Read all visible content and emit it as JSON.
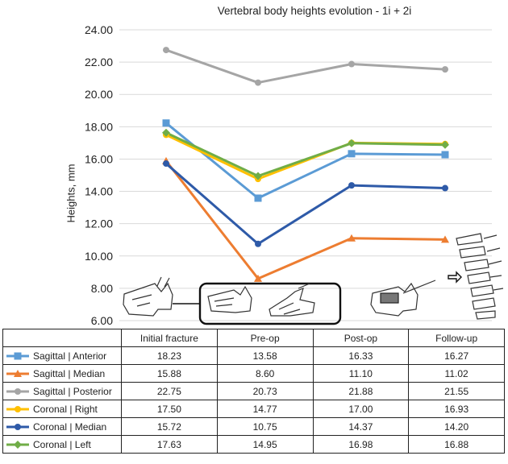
{
  "chart_data": {
    "type": "line",
    "title": "Vertebral body heights evolution - 1i + 2i",
    "ylabel": "Heights, mm",
    "xlabel": "",
    "ylim": [
      6,
      24
    ],
    "yticks": [
      "6.00",
      "8.00",
      "10.00",
      "12.00",
      "14.00",
      "16.00",
      "18.00",
      "20.00",
      "22.00",
      "24.00"
    ],
    "grid": true,
    "categories": [
      "Initial fracture",
      "Pre-op",
      "Post-op",
      "Follow-up"
    ],
    "series": [
      {
        "name": "Sagittal | Anterior",
        "color": "#5b9bd5",
        "marker": "square",
        "values": [
          18.23,
          13.58,
          16.33,
          16.27
        ],
        "labels": [
          "18.23",
          "13.58",
          "16.33",
          "16.27"
        ]
      },
      {
        "name": "Sagittal | Median",
        "color": "#ed7d31",
        "marker": "triangle",
        "values": [
          15.88,
          8.6,
          11.1,
          11.02
        ],
        "labels": [
          "15.88",
          "8.60",
          "11.10",
          "11.02"
        ]
      },
      {
        "name": "Sagittal | Posterior",
        "color": "#a5a5a5",
        "marker": "circle",
        "values": [
          22.75,
          20.73,
          21.88,
          21.55
        ],
        "labels": [
          "22.75",
          "20.73",
          "21.88",
          "21.55"
        ]
      },
      {
        "name": "Coronal | Right",
        "color": "#ffc000",
        "marker": "circle",
        "values": [
          17.5,
          14.77,
          17.0,
          16.93
        ],
        "labels": [
          "17.50",
          "14.77",
          "17.00",
          "16.93"
        ]
      },
      {
        "name": "Coronal | Median",
        "color": "#2e5aa8",
        "marker": "circle",
        "values": [
          15.72,
          10.75,
          14.37,
          14.2
        ],
        "labels": [
          "15.72",
          "10.75",
          "14.37",
          "14.20"
        ]
      },
      {
        "name": "Coronal | Left",
        "color": "#70ad47",
        "marker": "diamond",
        "values": [
          17.63,
          14.95,
          16.98,
          16.88
        ],
        "labels": [
          "17.63",
          "14.95",
          "16.98",
          "16.88"
        ]
      }
    ]
  }
}
